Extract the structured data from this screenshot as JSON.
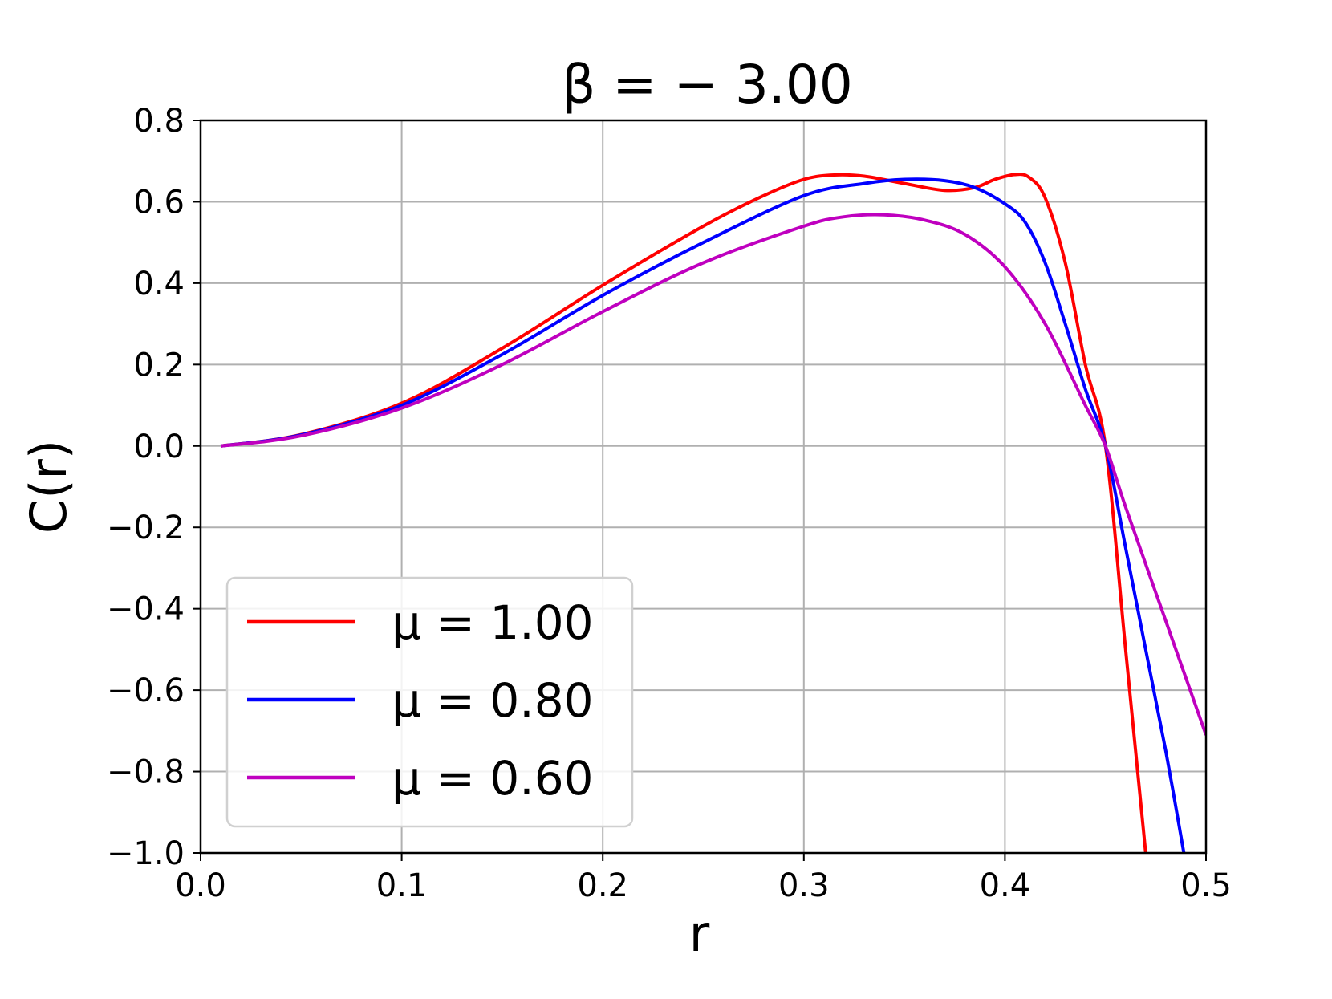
{
  "chart_data": {
    "type": "line",
    "title": "β = − 3.00",
    "xlabel": "r",
    "ylabel": "C(r)",
    "xlim": [
      0.0,
      0.5
    ],
    "ylim": [
      -1.0,
      0.8
    ],
    "x_ticks": [
      "0.0",
      "0.1",
      "0.2",
      "0.3",
      "0.4",
      "0.5"
    ],
    "y_ticks": [
      "0.8",
      "0.6",
      "0.4",
      "0.2",
      "0.0",
      "−0.2",
      "−0.4",
      "−0.6",
      "−0.8",
      "−1.0"
    ],
    "grid": true,
    "legend_position": "lower-left",
    "series": [
      {
        "name": "μ = 1.00",
        "color": "#ff0000",
        "points": [
          [
            0.01,
            0.0
          ],
          [
            0.05,
            0.028
          ],
          [
            0.1,
            0.105
          ],
          [
            0.15,
            0.24
          ],
          [
            0.2,
            0.395
          ],
          [
            0.25,
            0.54
          ],
          [
            0.28,
            0.615
          ],
          [
            0.3,
            0.655
          ],
          [
            0.315,
            0.666
          ],
          [
            0.33,
            0.663
          ],
          [
            0.35,
            0.645
          ],
          [
            0.37,
            0.628
          ],
          [
            0.385,
            0.635
          ],
          [
            0.395,
            0.655
          ],
          [
            0.405,
            0.667
          ],
          [
            0.412,
            0.66
          ],
          [
            0.42,
            0.61
          ],
          [
            0.43,
            0.45
          ],
          [
            0.44,
            0.2
          ],
          [
            0.45,
            0.0
          ],
          [
            0.46,
            -0.5
          ],
          [
            0.47,
            -1.0
          ]
        ]
      },
      {
        "name": "μ = 0.80",
        "color": "#0000ff",
        "points": [
          [
            0.01,
            0.0
          ],
          [
            0.05,
            0.027
          ],
          [
            0.1,
            0.1
          ],
          [
            0.15,
            0.225
          ],
          [
            0.2,
            0.37
          ],
          [
            0.25,
            0.5
          ],
          [
            0.3,
            0.615
          ],
          [
            0.33,
            0.645
          ],
          [
            0.35,
            0.655
          ],
          [
            0.37,
            0.652
          ],
          [
            0.385,
            0.635
          ],
          [
            0.4,
            0.595
          ],
          [
            0.41,
            0.55
          ],
          [
            0.42,
            0.45
          ],
          [
            0.43,
            0.3
          ],
          [
            0.44,
            0.14
          ],
          [
            0.45,
            0.0
          ],
          [
            0.46,
            -0.25
          ],
          [
            0.47,
            -0.5
          ],
          [
            0.48,
            -0.75
          ],
          [
            0.489,
            -1.0
          ]
        ]
      },
      {
        "name": "μ = 0.60",
        "color": "#bf00bf",
        "points": [
          [
            0.01,
            0.0
          ],
          [
            0.05,
            0.025
          ],
          [
            0.1,
            0.093
          ],
          [
            0.15,
            0.2
          ],
          [
            0.2,
            0.33
          ],
          [
            0.25,
            0.45
          ],
          [
            0.3,
            0.54
          ],
          [
            0.32,
            0.563
          ],
          [
            0.34,
            0.568
          ],
          [
            0.36,
            0.555
          ],
          [
            0.38,
            0.52
          ],
          [
            0.4,
            0.44
          ],
          [
            0.42,
            0.3
          ],
          [
            0.44,
            0.1
          ],
          [
            0.45,
            0.0
          ],
          [
            0.46,
            -0.15
          ],
          [
            0.48,
            -0.43
          ],
          [
            0.5,
            -0.71
          ]
        ]
      }
    ]
  }
}
